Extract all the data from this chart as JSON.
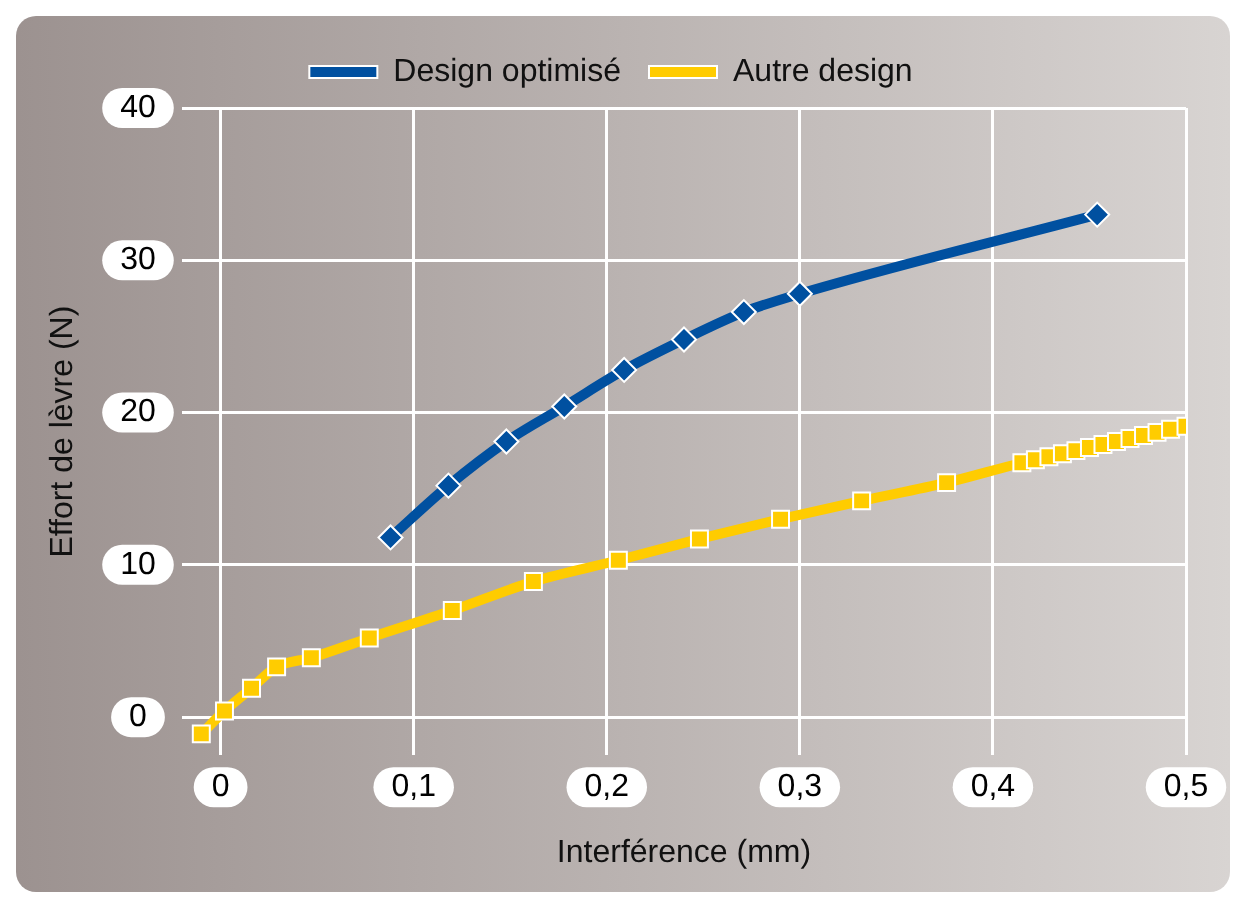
{
  "chart_data": {
    "type": "line",
    "xlabel": "Interférence (mm)",
    "ylabel": "Effort de lèvre (N)",
    "xlim": [
      -0.02,
      0.5
    ],
    "ylim": [
      -2.5,
      40
    ],
    "xticks": [
      0,
      {
        "value": 0.1,
        "label": "0,1"
      },
      {
        "value": 0.2,
        "label": "0,2"
      },
      {
        "value": 0.3,
        "label": "0,3"
      },
      {
        "value": 0.4,
        "label": "0,4"
      },
      {
        "value": 0.5,
        "label": "0,5"
      }
    ],
    "yticks": [
      0,
      10,
      20,
      30,
      40
    ],
    "grid": true,
    "legend": "top",
    "series": [
      {
        "name": "Design optimisé",
        "color": "#0050a0",
        "marker": "diamond",
        "x": [
          0.088,
          0.118,
          0.148,
          0.178,
          0.209,
          0.24,
          0.271,
          0.3,
          0.454
        ],
        "values": [
          11.8,
          15.2,
          18.1,
          20.4,
          22.8,
          24.8,
          26.6,
          27.8,
          33.0
        ]
      },
      {
        "name": "Autre design",
        "color": "#ffcc00",
        "marker": "square",
        "x": [
          -0.01,
          0.002,
          0.016,
          0.029,
          0.047,
          0.077,
          0.12,
          0.162,
          0.206,
          0.248,
          0.29,
          0.332,
          0.376,
          0.415,
          0.422,
          0.429,
          0.436,
          0.443,
          0.45,
          0.457,
          0.464,
          0.471,
          0.478,
          0.485,
          0.492,
          0.5
        ],
        "values": [
          -1.1,
          0.4,
          1.9,
          3.3,
          3.9,
          5.2,
          7.0,
          8.9,
          10.3,
          11.7,
          13.0,
          14.2,
          15.4,
          16.7,
          16.9,
          17.1,
          17.3,
          17.5,
          17.7,
          17.9,
          18.1,
          18.3,
          18.5,
          18.7,
          18.9,
          19.1
        ]
      }
    ]
  }
}
